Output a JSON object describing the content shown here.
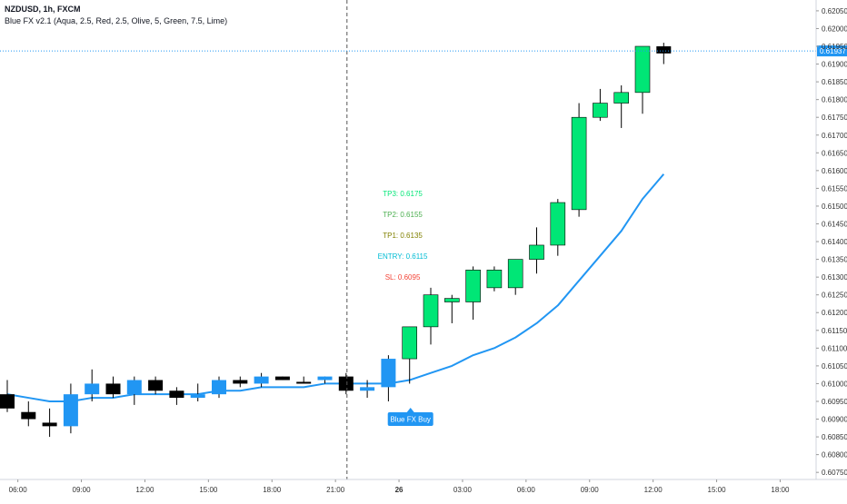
{
  "header": {
    "symbol": "NZDUSD, 1h, FXCM",
    "indicator": "Blue FX v2.1 (Aqua, 2.5, Red, 2.5, Olive, 5, Green, 7.5, Lime)"
  },
  "colors": {
    "bull": "#00e676",
    "neutral": "#2196f3",
    "bear": "#000000",
    "ma": "#2196f3",
    "tp3": "#00e676",
    "tp2": "#4caf50",
    "tp1": "#808000",
    "entry": "#00bcd4",
    "sl": "#f44336",
    "price_line": "#2196f3",
    "grid": "#e0e3eb"
  },
  "chart_data": {
    "type": "candlestick",
    "y_axis": {
      "range": [
        0.6073,
        0.6206
      ],
      "ticks": [
        "0.62050",
        "0.62000",
        "0.61950",
        "0.61900",
        "0.61850",
        "0.61800",
        "0.61750",
        "0.61700",
        "0.61650",
        "0.61600",
        "0.61550",
        "0.61500",
        "0.61450",
        "0.61400",
        "0.61350",
        "0.61300",
        "0.61250",
        "0.61200",
        "0.61150",
        "0.61100",
        "0.61050",
        "0.61000",
        "0.60950",
        "0.60900",
        "0.60850",
        "0.60800",
        "0.60750"
      ]
    },
    "x_axis": {
      "labels": [
        {
          "text": "06:00",
          "bar": 0.5,
          "bold": false
        },
        {
          "text": "09:00",
          "bar": 3.5,
          "bold": false
        },
        {
          "text": "12:00",
          "bar": 6.5,
          "bold": false
        },
        {
          "text": "15:00",
          "bar": 9.5,
          "bold": false
        },
        {
          "text": "18:00",
          "bar": 12.5,
          "bold": false
        },
        {
          "text": "21:00",
          "bar": 15.5,
          "bold": false
        },
        {
          "text": "26",
          "bar": 18.5,
          "bold": true
        },
        {
          "text": "03:00",
          "bar": 21.5,
          "bold": false
        },
        {
          "text": "06:00",
          "bar": 24.5,
          "bold": false
        },
        {
          "text": "09:00",
          "bar": 27.5,
          "bold": false
        },
        {
          "text": "12:00",
          "bar": 30.5,
          "bold": false
        },
        {
          "text": "15:00",
          "bar": 33.5,
          "bold": false
        },
        {
          "text": "18:00",
          "bar": 36.5,
          "bold": false
        }
      ]
    },
    "candles": [
      {
        "o": 0.6097,
        "h": 0.6101,
        "l": 0.6092,
        "c": 0.6093,
        "color": "bear"
      },
      {
        "o": 0.6092,
        "h": 0.6095,
        "l": 0.6088,
        "c": 0.609,
        "color": "bear"
      },
      {
        "o": 0.6089,
        "h": 0.6093,
        "l": 0.6085,
        "c": 0.6088,
        "color": "bear"
      },
      {
        "o": 0.6088,
        "h": 0.61,
        "l": 0.6086,
        "c": 0.6097,
        "color": "neutral"
      },
      {
        "o": 0.6097,
        "h": 0.6104,
        "l": 0.6095,
        "c": 0.61,
        "color": "neutral"
      },
      {
        "o": 0.61,
        "h": 0.6102,
        "l": 0.6096,
        "c": 0.6097,
        "color": "bear"
      },
      {
        "o": 0.6097,
        "h": 0.6102,
        "l": 0.6094,
        "c": 0.6101,
        "color": "neutral"
      },
      {
        "o": 0.6101,
        "h": 0.6102,
        "l": 0.6097,
        "c": 0.6098,
        "color": "bear"
      },
      {
        "o": 0.6098,
        "h": 0.6099,
        "l": 0.6094,
        "c": 0.6096,
        "color": "bear"
      },
      {
        "o": 0.6096,
        "h": 0.61,
        "l": 0.6095,
        "c": 0.6097,
        "color": "neutral"
      },
      {
        "o": 0.6097,
        "h": 0.6102,
        "l": 0.6096,
        "c": 0.6101,
        "color": "neutral"
      },
      {
        "o": 0.6101,
        "h": 0.6102,
        "l": 0.6099,
        "c": 0.61,
        "color": "bear"
      },
      {
        "o": 0.61,
        "h": 0.6103,
        "l": 0.6099,
        "c": 0.6102,
        "color": "neutral"
      },
      {
        "o": 0.6102,
        "h": 0.6102,
        "l": 0.6101,
        "c": 0.6101,
        "color": "bear"
      },
      {
        "o": 0.61005,
        "h": 0.6102,
        "l": 0.61,
        "c": 0.61005,
        "color": "bear"
      },
      {
        "o": 0.6101,
        "h": 0.6102,
        "l": 0.61,
        "c": 0.6102,
        "color": "neutral"
      },
      {
        "o": 0.6102,
        "h": 0.6103,
        "l": 0.6097,
        "c": 0.6098,
        "color": "bear"
      },
      {
        "o": 0.6098,
        "h": 0.6101,
        "l": 0.6096,
        "c": 0.6099,
        "color": "neutral"
      },
      {
        "o": 0.6099,
        "h": 0.6108,
        "l": 0.6095,
        "c": 0.6107,
        "color": "neutral"
      },
      {
        "o": 0.6107,
        "h": 0.6116,
        "l": 0.61,
        "c": 0.6116,
        "color": "bull"
      },
      {
        "o": 0.6116,
        "h": 0.6127,
        "l": 0.6111,
        "c": 0.6125,
        "color": "bull"
      },
      {
        "o": 0.6123,
        "h": 0.6125,
        "l": 0.6117,
        "c": 0.6124,
        "color": "bull"
      },
      {
        "o": 0.6123,
        "h": 0.6133,
        "l": 0.6118,
        "c": 0.6132,
        "color": "bull"
      },
      {
        "o": 0.6127,
        "h": 0.6133,
        "l": 0.6126,
        "c": 0.6132,
        "color": "bull"
      },
      {
        "o": 0.6127,
        "h": 0.6135,
        "l": 0.6125,
        "c": 0.6135,
        "color": "bull"
      },
      {
        "o": 0.6135,
        "h": 0.6144,
        "l": 0.6131,
        "c": 0.6139,
        "color": "bull"
      },
      {
        "o": 0.6139,
        "h": 0.6152,
        "l": 0.6136,
        "c": 0.6151,
        "color": "bull"
      },
      {
        "o": 0.6149,
        "h": 0.6179,
        "l": 0.6147,
        "c": 0.6175,
        "color": "bull"
      },
      {
        "o": 0.6175,
        "h": 0.6183,
        "l": 0.6174,
        "c": 0.6179,
        "color": "bull"
      },
      {
        "o": 0.6179,
        "h": 0.6184,
        "l": 0.6172,
        "c": 0.6182,
        "color": "bull"
      },
      {
        "o": 0.6182,
        "h": 0.6195,
        "l": 0.6176,
        "c": 0.6195,
        "color": "bull"
      },
      {
        "o": 0.6195,
        "h": 0.6196,
        "l": 0.619,
        "c": 0.6193,
        "color": "bear"
      }
    ],
    "moving_average": [
      0.6097,
      0.6096,
      0.6095,
      0.6095,
      0.6096,
      0.6096,
      0.6097,
      0.6097,
      0.6097,
      0.6097,
      0.6098,
      0.6098,
      0.6099,
      0.6099,
      0.6099,
      0.61,
      0.61,
      0.61,
      0.61,
      0.6101,
      0.6103,
      0.6105,
      0.6108,
      0.611,
      0.6113,
      0.6117,
      0.6122,
      0.6129,
      0.6136,
      0.6143,
      0.6152,
      0.6159
    ],
    "current_price": {
      "value": 0.61937,
      "label": "0.61937"
    },
    "vertical_marker_bar": 16,
    "annotations": [
      {
        "label": "TP3: 0.6175",
        "value": 0.6175,
        "color_key": "tp3"
      },
      {
        "label": "TP2: 0.6155",
        "value": 0.6155,
        "color_key": "tp2"
      },
      {
        "label": "TP1: 0.6135",
        "value": 0.6135,
        "color_key": "tp1"
      },
      {
        "label": "ENTRY: 0.6115",
        "value": 0.6115,
        "color_key": "entry"
      },
      {
        "label": "SL: 0.6095",
        "value": 0.6095,
        "color_key": "sl"
      }
    ],
    "annotation_bar": 18.5,
    "signal": {
      "label": "Blue FX Buy",
      "bar": 19
    }
  }
}
